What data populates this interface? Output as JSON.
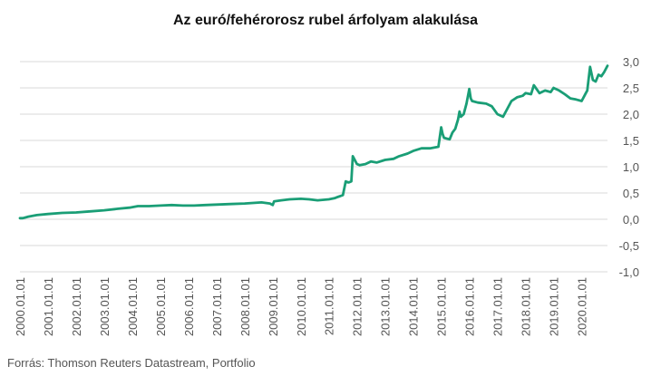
{
  "chart_data": {
    "type": "line",
    "title": "Az euró/fehérorosz rubel árfolyam alakulása",
    "source": "Forrás: Thomson Reuters Datastream, Portfolio",
    "xlabel": "",
    "ylabel": "",
    "ylim": [
      -1.0,
      3.0
    ],
    "y_ticks": [
      "3,0",
      "2,5",
      "2,0",
      "1,5",
      "1,0",
      "0,5",
      "0,0",
      "-0,5",
      "-1,0"
    ],
    "y_tick_values": [
      3.0,
      2.5,
      2.0,
      1.5,
      1.0,
      0.5,
      0.0,
      -0.5,
      -1.0
    ],
    "x_range": [
      2000.0,
      2020.92
    ],
    "x_ticks": [
      "2000.01.01",
      "2001.01.01",
      "2002.01.01",
      "2003.01.01",
      "2004.01.01",
      "2005.01.01",
      "2006.01.01",
      "2007.01.01",
      "2008.01.01",
      "2009.01.01",
      "2010.01.01",
      "2011.01.01",
      "2012.01.01",
      "2013.01.01",
      "2014.01.01",
      "2015.01.01",
      "2016.01.01",
      "2017.01.01",
      "2018.01.01",
      "2019.01.01",
      "2020.01.01"
    ],
    "y_axis_position": "right",
    "grid": true,
    "legend": "none",
    "series_color": "#1a9e76",
    "x": [
      2000.0,
      2000.1,
      2000.3,
      2000.6,
      2001.0,
      2001.5,
      2002.0,
      2002.5,
      2003.0,
      2003.5,
      2003.9,
      2004.2,
      2004.6,
      2005.0,
      2005.4,
      2005.8,
      2006.2,
      2006.6,
      2007.0,
      2007.5,
      2008.0,
      2008.3,
      2008.6,
      2008.9,
      2009.0,
      2009.05,
      2009.3,
      2009.6,
      2010.0,
      2010.3,
      2010.6,
      2011.0,
      2011.2,
      2011.3,
      2011.4,
      2011.5,
      2011.6,
      2011.7,
      2011.8,
      2011.85,
      2011.9,
      2012.0,
      2012.1,
      2012.3,
      2012.5,
      2012.7,
      2013.0,
      2013.3,
      2013.5,
      2013.8,
      2014.0,
      2014.3,
      2014.6,
      2014.9,
      2015.0,
      2015.05,
      2015.1,
      2015.3,
      2015.4,
      2015.5,
      2015.6,
      2015.65,
      2015.7,
      2015.8,
      2015.9,
      2016.0,
      2016.05,
      2016.1,
      2016.3,
      2016.6,
      2016.8,
      2017.0,
      2017.2,
      2017.3,
      2017.5,
      2017.7,
      2017.9,
      2018.0,
      2018.2,
      2018.3,
      2018.5,
      2018.7,
      2018.9,
      2019.0,
      2019.2,
      2019.4,
      2019.6,
      2019.8,
      2020.0,
      2020.1,
      2020.15,
      2020.2,
      2020.3,
      2020.4,
      2020.5,
      2020.6,
      2020.7,
      2020.8,
      2020.92
    ],
    "values": [
      0.02,
      0.02,
      0.05,
      0.08,
      0.1,
      0.12,
      0.13,
      0.15,
      0.17,
      0.2,
      0.22,
      0.25,
      0.25,
      0.26,
      0.27,
      0.26,
      0.26,
      0.27,
      0.28,
      0.29,
      0.3,
      0.31,
      0.32,
      0.3,
      0.27,
      0.34,
      0.36,
      0.38,
      0.39,
      0.38,
      0.36,
      0.38,
      0.4,
      0.42,
      0.44,
      0.46,
      0.72,
      0.7,
      0.72,
      1.2,
      1.15,
      1.05,
      1.03,
      1.05,
      1.1,
      1.08,
      1.13,
      1.15,
      1.2,
      1.25,
      1.3,
      1.35,
      1.35,
      1.38,
      1.75,
      1.62,
      1.55,
      1.52,
      1.65,
      1.72,
      1.9,
      2.05,
      1.95,
      2.0,
      2.2,
      2.48,
      2.3,
      2.25,
      2.22,
      2.2,
      2.15,
      2.0,
      1.95,
      2.05,
      2.25,
      2.32,
      2.35,
      2.4,
      2.38,
      2.55,
      2.4,
      2.45,
      2.42,
      2.5,
      2.45,
      2.38,
      2.3,
      2.28,
      2.25,
      2.35,
      2.4,
      2.45,
      2.9,
      2.65,
      2.62,
      2.75,
      2.72,
      2.8,
      2.92
    ]
  }
}
